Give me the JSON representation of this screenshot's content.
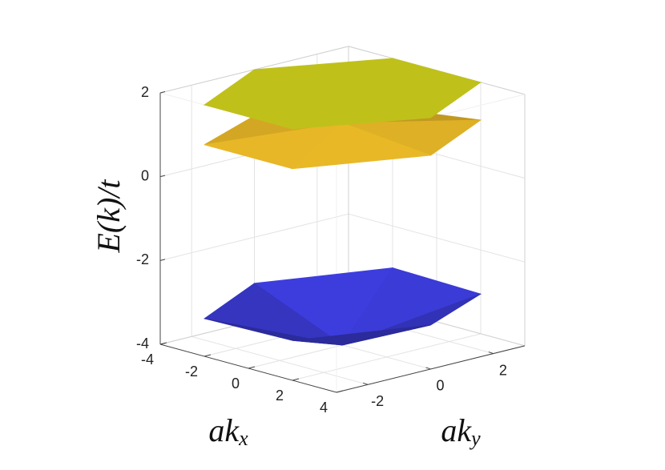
{
  "chart_data": {
    "type": "surface3d",
    "zlabel": "E(k)/t",
    "xlabel": {
      "text": "ak",
      "sub": "x"
    },
    "ylabel": {
      "text": "ak",
      "sub": "y"
    },
    "xlim": [
      -4,
      4
    ],
    "ylim": [
      -3,
      3
    ],
    "zlim": [
      -4,
      2
    ],
    "xticks": [
      -4,
      -2,
      0,
      2,
      4
    ],
    "yticks": [
      -2,
      0,
      2
    ],
    "zticks": [
      -4,
      -2,
      0,
      2
    ],
    "grid": true,
    "x": [
      -2,
      -4,
      -2,
      2,
      4,
      2,
      0
    ],
    "y": [
      -3,
      0,
      3,
      3,
      0,
      -3,
      0
    ],
    "series": [
      {
        "color": "#3b3bd6",
        "values": [
          -3.1,
          -3.1,
          -3.0,
          -3.05,
          -2.95,
          -3.05,
          -4
        ]
      },
      {
        "color": "#e2b326",
        "values": [
          1.05,
          0.9,
          0.8,
          1.1,
          1.1,
          1.05,
          1.3
        ]
      },
      {
        "color": "#c2c41a",
        "values": [
          2,
          2,
          2,
          2,
          2,
          2,
          2
        ]
      }
    ]
  }
}
